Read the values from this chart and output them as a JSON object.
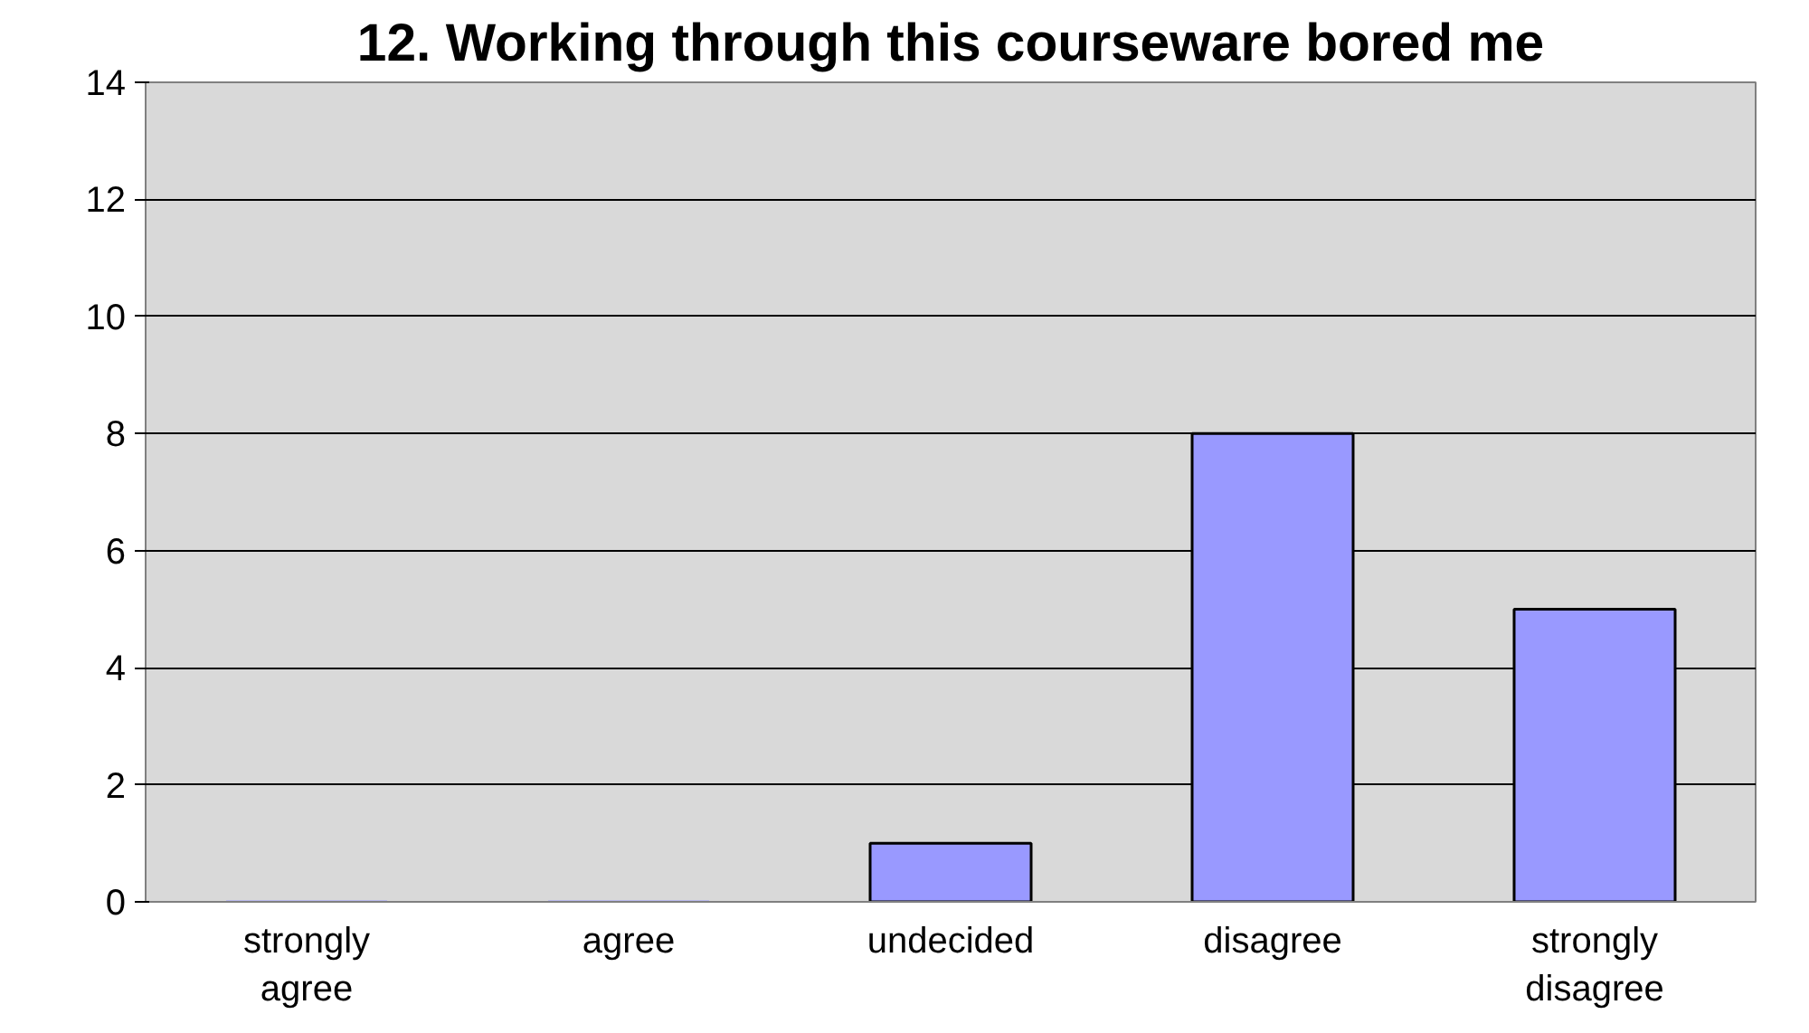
{
  "chart_data": {
    "type": "bar",
    "title": "12. Working through this courseware bored me",
    "categories": [
      "strongly agree",
      "agree",
      "undecided",
      "disagree",
      "strongly disagree"
    ],
    "values": [
      0,
      0,
      1,
      8,
      5
    ],
    "color": "#9999ff",
    "ylim": [
      0,
      14
    ],
    "yticks": [
      0,
      2,
      4,
      6,
      8,
      10,
      12,
      14
    ],
    "grid": "y"
  }
}
